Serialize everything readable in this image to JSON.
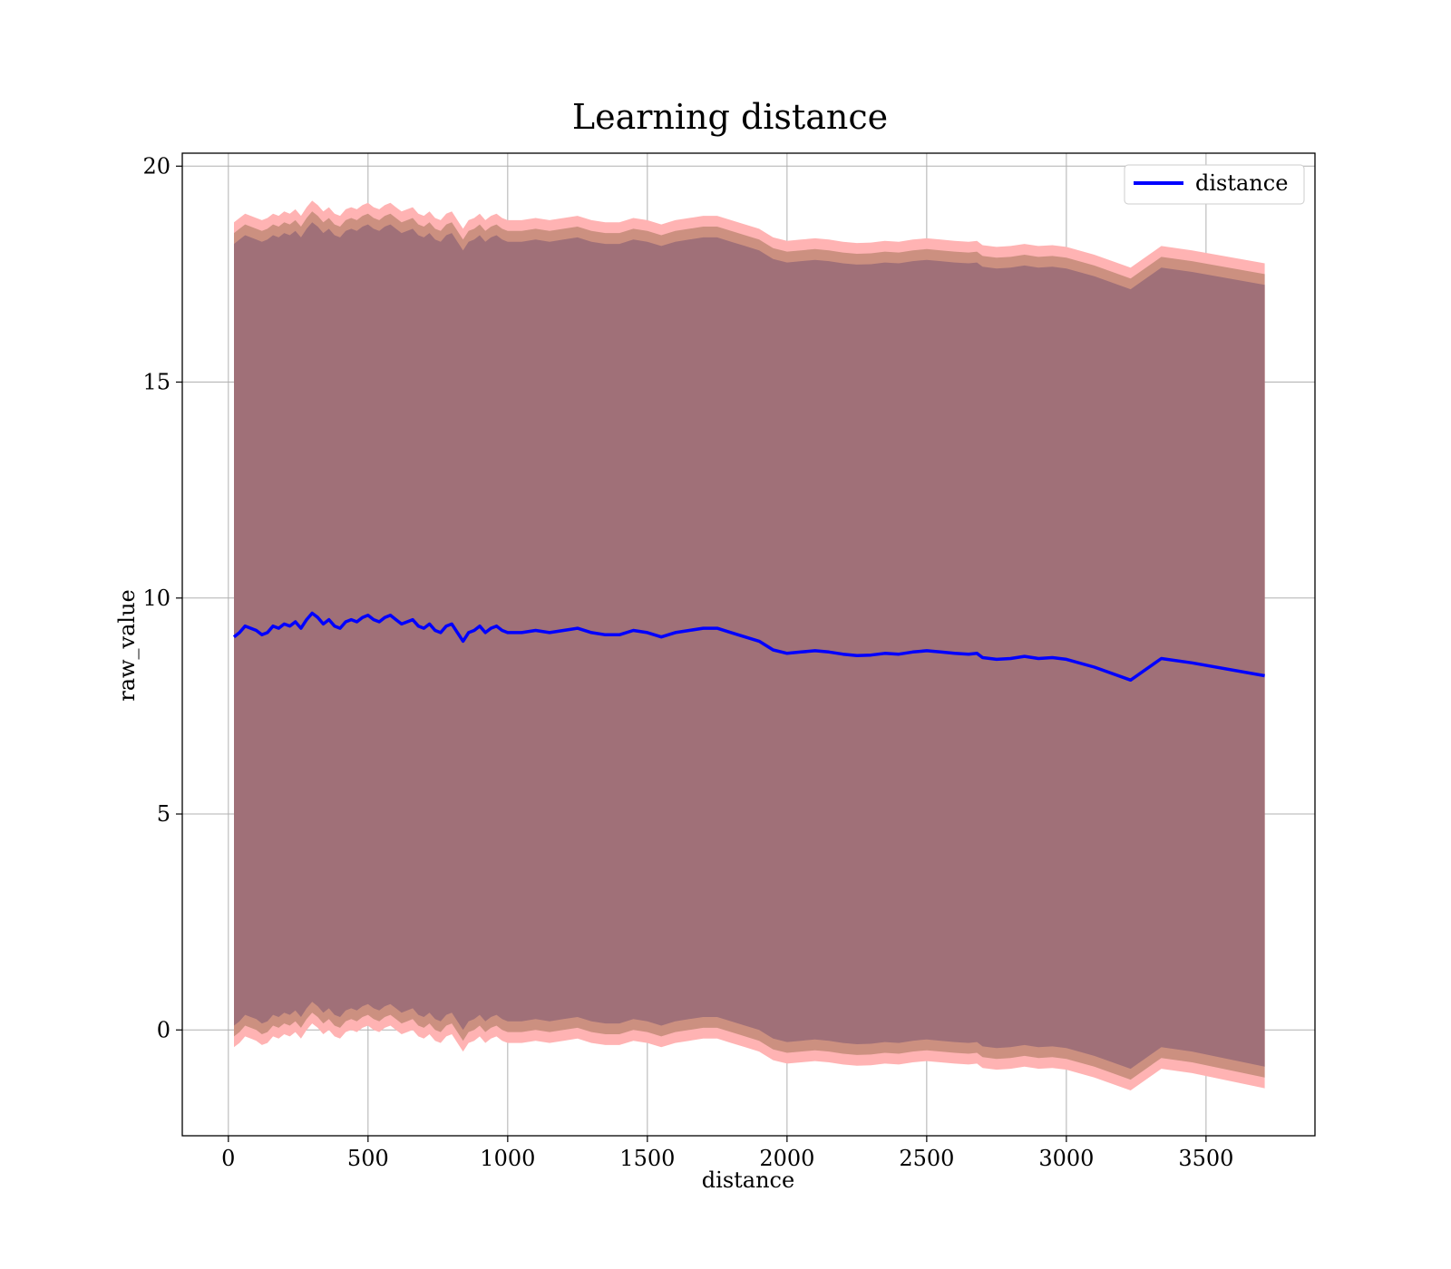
{
  "chart_data": {
    "type": "line",
    "title": "Learning distance",
    "xlabel": "distance",
    "ylabel": "raw_value",
    "xlim": [
      -165,
      3890
    ],
    "ylim": [
      -2.45,
      20.3
    ],
    "xticks": [
      0,
      500,
      1000,
      1500,
      2000,
      2500,
      3000,
      3500
    ],
    "yticks": [
      0,
      5,
      10,
      15,
      20
    ],
    "grid": true,
    "legend_position": "top-right",
    "colors": {
      "line": "#0000ff",
      "band_outer": "#ff000055",
      "band_middle": "#ff8c0040",
      "band_inner": "#80004066"
    },
    "series": [
      {
        "name": "distance",
        "x": [
          20,
          40,
          60,
          80,
          100,
          120,
          140,
          160,
          180,
          200,
          220,
          240,
          260,
          280,
          300,
          320,
          340,
          360,
          380,
          400,
          420,
          440,
          460,
          480,
          500,
          520,
          540,
          560,
          580,
          600,
          620,
          640,
          660,
          680,
          700,
          720,
          740,
          760,
          780,
          800,
          820,
          840,
          860,
          880,
          900,
          920,
          940,
          960,
          980,
          1000,
          1050,
          1100,
          1150,
          1200,
          1250,
          1300,
          1350,
          1400,
          1450,
          1500,
          1550,
          1600,
          1650,
          1700,
          1750,
          1800,
          1850,
          1900,
          1950,
          2000,
          2050,
          2100,
          2150,
          2200,
          2250,
          2300,
          2350,
          2400,
          2450,
          2500,
          2550,
          2600,
          2650,
          2680,
          2700,
          2750,
          2800,
          2850,
          2900,
          2950,
          3000,
          3100,
          3230,
          3340,
          3450,
          3710
        ],
        "values": [
          9.1,
          9.2,
          9.35,
          9.3,
          9.25,
          9.15,
          9.2,
          9.35,
          9.3,
          9.4,
          9.35,
          9.45,
          9.3,
          9.5,
          9.65,
          9.55,
          9.4,
          9.5,
          9.35,
          9.3,
          9.45,
          9.5,
          9.45,
          9.55,
          9.6,
          9.5,
          9.45,
          9.55,
          9.6,
          9.5,
          9.4,
          9.45,
          9.5,
          9.35,
          9.3,
          9.4,
          9.25,
          9.2,
          9.35,
          9.4,
          9.2,
          9.0,
          9.2,
          9.25,
          9.35,
          9.2,
          9.3,
          9.35,
          9.25,
          9.2,
          9.2,
          9.25,
          9.2,
          9.25,
          9.3,
          9.2,
          9.15,
          9.15,
          9.25,
          9.2,
          9.1,
          9.2,
          9.25,
          9.3,
          9.3,
          9.2,
          9.1,
          9.0,
          8.8,
          8.72,
          8.75,
          8.78,
          8.75,
          8.7,
          8.67,
          8.68,
          8.72,
          8.7,
          8.75,
          8.78,
          8.75,
          8.72,
          8.7,
          8.72,
          8.62,
          8.58,
          8.6,
          8.65,
          8.6,
          8.62,
          8.58,
          8.4,
          8.1,
          8.6,
          8.5,
          8.2
        ],
        "band_outer": {
          "upper": [
            18.7,
            18.8,
            18.9,
            18.85,
            18.8,
            18.75,
            18.8,
            18.9,
            18.85,
            18.95,
            18.9,
            19.0,
            18.85,
            19.05,
            19.2,
            19.1,
            18.95,
            19.05,
            18.9,
            18.85,
            19.0,
            19.05,
            19.0,
            19.1,
            19.15,
            19.05,
            19.0,
            19.1,
            19.15,
            19.05,
            18.95,
            19.0,
            19.05,
            18.9,
            18.85,
            18.95,
            18.8,
            18.75,
            18.9,
            18.95,
            18.75,
            18.55,
            18.75,
            18.8,
            18.9,
            18.75,
            18.85,
            18.9,
            18.8,
            18.75,
            18.75,
            18.8,
            18.75,
            18.8,
            18.85,
            18.75,
            18.7,
            18.7,
            18.8,
            18.75,
            18.65,
            18.75,
            18.8,
            18.85,
            18.85,
            18.75,
            18.65,
            18.55,
            18.35,
            18.27,
            18.3,
            18.33,
            18.3,
            18.25,
            18.22,
            18.23,
            18.27,
            18.25,
            18.3,
            18.33,
            18.3,
            18.27,
            18.25,
            18.27,
            18.17,
            18.13,
            18.15,
            18.2,
            18.15,
            18.17,
            18.13,
            17.95,
            17.65,
            18.15,
            18.05,
            17.75
          ],
          "lower": [
            -0.4,
            -0.3,
            -0.15,
            -0.2,
            -0.25,
            -0.35,
            -0.3,
            -0.15,
            -0.2,
            -0.1,
            -0.15,
            -0.05,
            -0.2,
            0.0,
            0.15,
            0.05,
            -0.1,
            0.0,
            -0.15,
            -0.2,
            -0.05,
            0.0,
            -0.05,
            0.05,
            0.1,
            0.0,
            -0.05,
            0.05,
            0.1,
            0.0,
            -0.1,
            -0.05,
            0.0,
            -0.15,
            -0.2,
            -0.1,
            -0.25,
            -0.3,
            -0.15,
            -0.1,
            -0.3,
            -0.5,
            -0.3,
            -0.25,
            -0.15,
            -0.3,
            -0.2,
            -0.15,
            -0.25,
            -0.3,
            -0.3,
            -0.25,
            -0.3,
            -0.25,
            -0.2,
            -0.3,
            -0.35,
            -0.35,
            -0.25,
            -0.3,
            -0.4,
            -0.3,
            -0.25,
            -0.2,
            -0.2,
            -0.3,
            -0.4,
            -0.5,
            -0.7,
            -0.78,
            -0.75,
            -0.72,
            -0.75,
            -0.8,
            -0.83,
            -0.82,
            -0.78,
            -0.8,
            -0.75,
            -0.72,
            -0.75,
            -0.78,
            -0.8,
            -0.78,
            -0.88,
            -0.92,
            -0.9,
            -0.85,
            -0.9,
            -0.88,
            -0.92,
            -1.1,
            -1.4,
            -0.9,
            -1.0,
            -1.35
          ]
        },
        "band_middle": {
          "upper": [
            18.45,
            18.55,
            18.65,
            18.6,
            18.55,
            18.5,
            18.55,
            18.65,
            18.6,
            18.7,
            18.65,
            18.75,
            18.6,
            18.8,
            18.95,
            18.85,
            18.7,
            18.8,
            18.65,
            18.6,
            18.75,
            18.8,
            18.75,
            18.85,
            18.9,
            18.8,
            18.75,
            18.85,
            18.9,
            18.8,
            18.7,
            18.75,
            18.8,
            18.65,
            18.6,
            18.7,
            18.55,
            18.5,
            18.65,
            18.7,
            18.5,
            18.3,
            18.5,
            18.55,
            18.65,
            18.5,
            18.6,
            18.65,
            18.55,
            18.5,
            18.5,
            18.55,
            18.5,
            18.55,
            18.6,
            18.5,
            18.45,
            18.45,
            18.55,
            18.5,
            18.4,
            18.5,
            18.55,
            18.6,
            18.6,
            18.5,
            18.4,
            18.3,
            18.1,
            18.02,
            18.05,
            18.08,
            18.05,
            18.0,
            17.97,
            17.98,
            18.02,
            18.0,
            18.05,
            18.08,
            18.05,
            18.02,
            18.0,
            18.02,
            17.92,
            17.88,
            17.9,
            17.95,
            17.9,
            17.92,
            17.88,
            17.7,
            17.4,
            17.9,
            17.8,
            17.5
          ],
          "lower": [
            -0.15,
            -0.05,
            0.1,
            0.05,
            0.0,
            -0.1,
            -0.05,
            0.1,
            0.05,
            0.15,
            0.1,
            0.2,
            0.05,
            0.25,
            0.4,
            0.3,
            0.15,
            0.25,
            0.1,
            0.05,
            0.2,
            0.25,
            0.2,
            0.3,
            0.35,
            0.25,
            0.2,
            0.3,
            0.35,
            0.25,
            0.15,
            0.2,
            0.25,
            0.1,
            0.05,
            0.15,
            0.0,
            -0.05,
            0.1,
            0.15,
            -0.05,
            -0.25,
            -0.05,
            0.0,
            0.1,
            -0.05,
            0.05,
            0.1,
            0.0,
            -0.05,
            -0.05,
            0.0,
            -0.05,
            0.0,
            0.05,
            -0.05,
            -0.1,
            -0.1,
            0.0,
            -0.05,
            -0.15,
            -0.05,
            0.0,
            0.05,
            0.05,
            -0.05,
            -0.15,
            -0.25,
            -0.45,
            -0.53,
            -0.5,
            -0.47,
            -0.5,
            -0.55,
            -0.58,
            -0.57,
            -0.53,
            -0.55,
            -0.5,
            -0.47,
            -0.5,
            -0.53,
            -0.55,
            -0.53,
            -0.63,
            -0.67,
            -0.65,
            -0.6,
            -0.65,
            -0.63,
            -0.67,
            -0.85,
            -1.15,
            -0.65,
            -0.75,
            -1.1
          ]
        },
        "band_inner": {
          "upper": [
            18.2,
            18.3,
            18.4,
            18.35,
            18.3,
            18.25,
            18.3,
            18.4,
            18.35,
            18.45,
            18.4,
            18.5,
            18.35,
            18.55,
            18.7,
            18.6,
            18.45,
            18.55,
            18.4,
            18.35,
            18.5,
            18.55,
            18.5,
            18.6,
            18.65,
            18.55,
            18.5,
            18.6,
            18.65,
            18.55,
            18.45,
            18.5,
            18.55,
            18.4,
            18.35,
            18.45,
            18.3,
            18.25,
            18.4,
            18.45,
            18.25,
            18.05,
            18.25,
            18.3,
            18.4,
            18.25,
            18.35,
            18.4,
            18.3,
            18.25,
            18.25,
            18.3,
            18.25,
            18.3,
            18.35,
            18.25,
            18.2,
            18.2,
            18.3,
            18.25,
            18.15,
            18.25,
            18.3,
            18.35,
            18.35,
            18.25,
            18.15,
            18.05,
            17.85,
            17.77,
            17.8,
            17.83,
            17.8,
            17.75,
            17.72,
            17.73,
            17.77,
            17.75,
            17.8,
            17.83,
            17.8,
            17.77,
            17.75,
            17.77,
            17.67,
            17.63,
            17.65,
            17.7,
            17.65,
            17.67,
            17.63,
            17.45,
            17.15,
            17.65,
            17.55,
            17.25
          ],
          "lower": [
            0.1,
            0.2,
            0.35,
            0.3,
            0.25,
            0.15,
            0.2,
            0.35,
            0.3,
            0.4,
            0.35,
            0.45,
            0.3,
            0.5,
            0.65,
            0.55,
            0.4,
            0.5,
            0.35,
            0.3,
            0.45,
            0.5,
            0.45,
            0.55,
            0.6,
            0.5,
            0.45,
            0.55,
            0.6,
            0.5,
            0.4,
            0.45,
            0.5,
            0.35,
            0.3,
            0.4,
            0.25,
            0.2,
            0.35,
            0.4,
            0.2,
            0.0,
            0.2,
            0.25,
            0.35,
            0.2,
            0.3,
            0.35,
            0.25,
            0.2,
            0.2,
            0.25,
            0.2,
            0.25,
            0.3,
            0.2,
            0.15,
            0.15,
            0.25,
            0.2,
            0.1,
            0.2,
            0.25,
            0.3,
            0.3,
            0.2,
            0.1,
            0.0,
            -0.2,
            -0.28,
            -0.25,
            -0.22,
            -0.25,
            -0.3,
            -0.33,
            -0.32,
            -0.28,
            -0.3,
            -0.25,
            -0.22,
            -0.25,
            -0.28,
            -0.3,
            -0.28,
            -0.38,
            -0.42,
            -0.4,
            -0.35,
            -0.4,
            -0.38,
            -0.42,
            -0.6,
            -0.9,
            -0.4,
            -0.5,
            -0.85
          ]
        }
      }
    ]
  }
}
